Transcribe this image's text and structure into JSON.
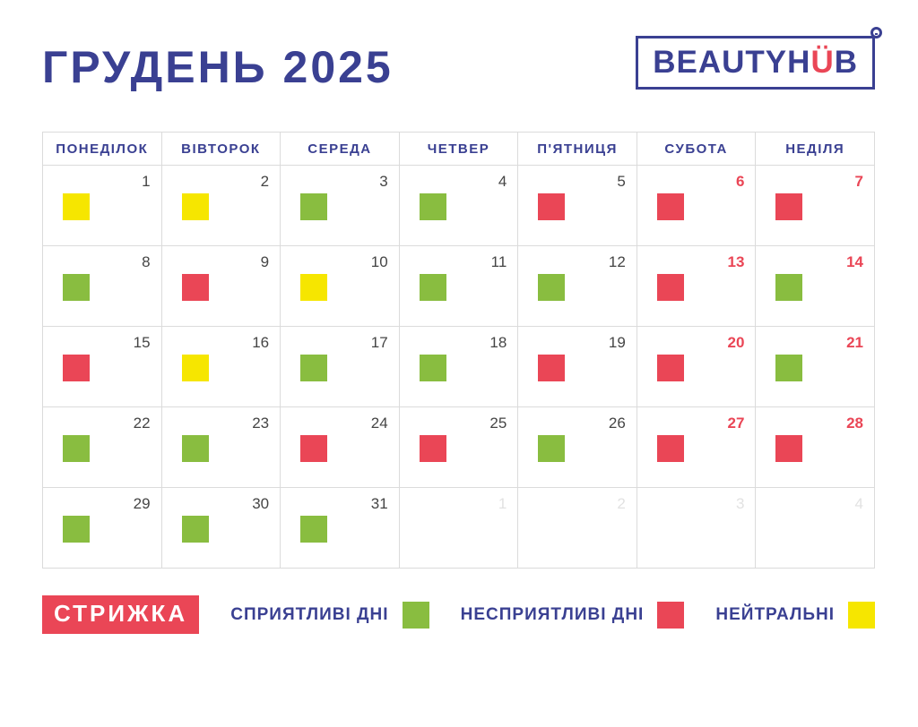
{
  "header": {
    "title": "ГРУДЕНЬ 2025",
    "logo": {
      "part1": "BEAUTYH",
      "accent": "Ü",
      "part2": "B",
      "mark_icon": "circled-equals-trademark"
    }
  },
  "calendar": {
    "weekdays": [
      "ПОНЕДІЛОК",
      "ВІВТОРОК",
      "СЕРЕДА",
      "ЧЕТВЕР",
      "П'ЯТНИЦЯ",
      "СУБОТА",
      "НЕДІЛЯ"
    ],
    "weeks": [
      [
        {
          "day": "1",
          "type": "neutral",
          "weekend": false,
          "muted": false
        },
        {
          "day": "2",
          "type": "neutral",
          "weekend": false,
          "muted": false
        },
        {
          "day": "3",
          "type": "favorable",
          "weekend": false,
          "muted": false
        },
        {
          "day": "4",
          "type": "favorable",
          "weekend": false,
          "muted": false
        },
        {
          "day": "5",
          "type": "unfavorable",
          "weekend": false,
          "muted": false
        },
        {
          "day": "6",
          "type": "unfavorable",
          "weekend": true,
          "muted": false
        },
        {
          "day": "7",
          "type": "unfavorable",
          "weekend": true,
          "muted": false
        }
      ],
      [
        {
          "day": "8",
          "type": "favorable",
          "weekend": false,
          "muted": false
        },
        {
          "day": "9",
          "type": "unfavorable",
          "weekend": false,
          "muted": false
        },
        {
          "day": "10",
          "type": "neutral",
          "weekend": false,
          "muted": false
        },
        {
          "day": "11",
          "type": "favorable",
          "weekend": false,
          "muted": false
        },
        {
          "day": "12",
          "type": "favorable",
          "weekend": false,
          "muted": false
        },
        {
          "day": "13",
          "type": "unfavorable",
          "weekend": true,
          "muted": false
        },
        {
          "day": "14",
          "type": "favorable",
          "weekend": true,
          "muted": false
        }
      ],
      [
        {
          "day": "15",
          "type": "unfavorable",
          "weekend": false,
          "muted": false
        },
        {
          "day": "16",
          "type": "neutral",
          "weekend": false,
          "muted": false
        },
        {
          "day": "17",
          "type": "favorable",
          "weekend": false,
          "muted": false
        },
        {
          "day": "18",
          "type": "favorable",
          "weekend": false,
          "muted": false
        },
        {
          "day": "19",
          "type": "unfavorable",
          "weekend": false,
          "muted": false
        },
        {
          "day": "20",
          "type": "unfavorable",
          "weekend": true,
          "muted": false
        },
        {
          "day": "21",
          "type": "favorable",
          "weekend": true,
          "muted": false
        }
      ],
      [
        {
          "day": "22",
          "type": "favorable",
          "weekend": false,
          "muted": false
        },
        {
          "day": "23",
          "type": "favorable",
          "weekend": false,
          "muted": false
        },
        {
          "day": "24",
          "type": "unfavorable",
          "weekend": false,
          "muted": false
        },
        {
          "day": "25",
          "type": "unfavorable",
          "weekend": false,
          "muted": false
        },
        {
          "day": "26",
          "type": "favorable",
          "weekend": false,
          "muted": false
        },
        {
          "day": "27",
          "type": "unfavorable",
          "weekend": true,
          "muted": false
        },
        {
          "day": "28",
          "type": "unfavorable",
          "weekend": true,
          "muted": false
        }
      ],
      [
        {
          "day": "29",
          "type": "favorable",
          "weekend": false,
          "muted": false
        },
        {
          "day": "30",
          "type": "favorable",
          "weekend": false,
          "muted": false
        },
        {
          "day": "31",
          "type": "favorable",
          "weekend": false,
          "muted": false
        },
        {
          "day": "1",
          "type": "none",
          "weekend": false,
          "muted": true
        },
        {
          "day": "2",
          "type": "none",
          "weekend": false,
          "muted": true
        },
        {
          "day": "3",
          "type": "none",
          "weekend": false,
          "muted": true
        },
        {
          "day": "4",
          "type": "none",
          "weekend": false,
          "muted": true
        }
      ]
    ]
  },
  "legend": {
    "badge": "СТРИЖКА",
    "items": [
      {
        "label": "СПРИЯТЛИВІ ДНІ",
        "type": "favorable"
      },
      {
        "label": "НЕСПРИЯТЛИВІ ДНІ",
        "type": "unfavorable"
      },
      {
        "label": "НЕЙТРАЛЬНІ",
        "type": "neutral"
      }
    ]
  },
  "colors": {
    "favorable": "#89BD40",
    "unfavorable": "#EA4656",
    "neutral": "#F6E600",
    "brand": "#3A4092",
    "weekend_number": "#EA4656",
    "day_number": "#454545",
    "muted_number": "#E2E2E2",
    "grid_line": "#DBDBDB",
    "badge_background": "#EA4656"
  }
}
